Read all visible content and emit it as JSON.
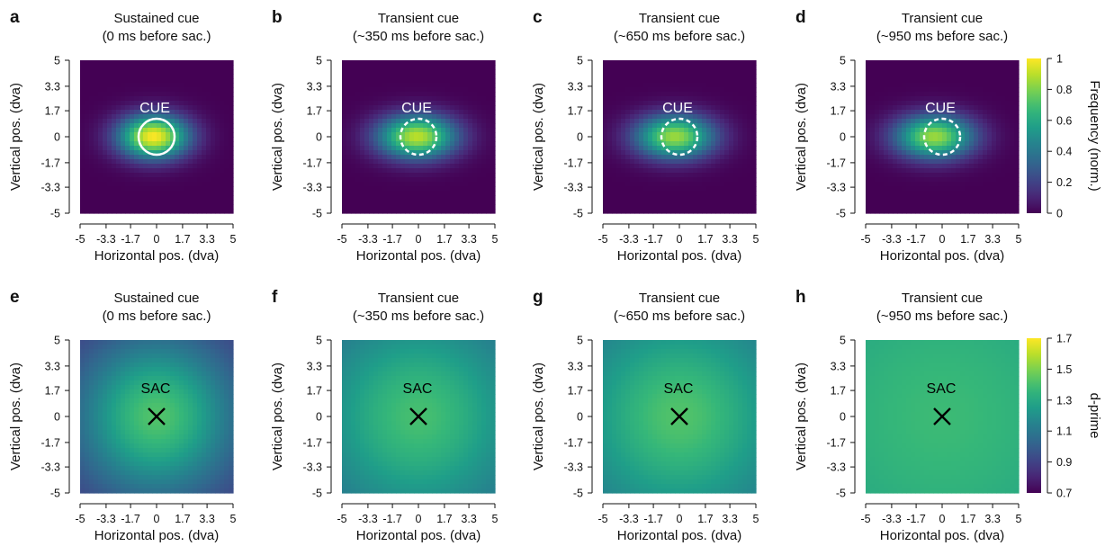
{
  "chart_data": [
    {
      "type": "heatmap",
      "panel_label": "a",
      "title_line1": "Sustained cue",
      "title_line2": "(0 ms before sac.)",
      "xlabel": "Horizontal pos. (dva)",
      "ylabel": "Vertical pos. (dva)",
      "xlim": [
        -5,
        5
      ],
      "ylim": [
        -5,
        5
      ],
      "xticks": [
        "-5",
        "-3.3",
        "-1.7",
        "0",
        "1.7",
        "3.3",
        "5"
      ],
      "yticks": [
        "5",
        "3.3",
        "1.7",
        "0",
        "-1.7",
        "-3.3",
        "-5"
      ],
      "overlay_label": "CUE",
      "overlay_marker": "solid-circle",
      "center": [
        -0.2,
        0.0
      ],
      "peak": 1.0,
      "spread": [
        1.6,
        1.0
      ],
      "background": 0.0
    },
    {
      "type": "heatmap",
      "panel_label": "b",
      "title_line1": "Transient cue",
      "title_line2": "(~350 ms before sac.)",
      "xlabel": "Horizontal pos. (dva)",
      "ylabel": "Vertical pos. (dva)",
      "xlim": [
        -5,
        5
      ],
      "ylim": [
        -5,
        5
      ],
      "xticks": [
        "-5",
        "-3.3",
        "-1.7",
        "0",
        "1.7",
        "3.3",
        "5"
      ],
      "yticks": [
        "5",
        "3.3",
        "1.7",
        "0",
        "-1.7",
        "-3.3",
        "-5"
      ],
      "overlay_label": "CUE",
      "overlay_marker": "dashed-circle",
      "center": [
        -0.1,
        0.0
      ],
      "peak": 0.9,
      "spread": [
        1.8,
        1.0
      ],
      "background": 0.0
    },
    {
      "type": "heatmap",
      "panel_label": "c",
      "title_line1": "Transient cue",
      "title_line2": "(~650 ms before sac.)",
      "xlabel": "Horizontal pos. (dva)",
      "ylabel": "Vertical pos. (dva)",
      "xlim": [
        -5,
        5
      ],
      "ylim": [
        -5,
        5
      ],
      "xticks": [
        "-5",
        "-3.3",
        "-1.7",
        "0",
        "1.7",
        "3.3",
        "5"
      ],
      "yticks": [
        "5",
        "3.3",
        "1.7",
        "0",
        "-1.7",
        "-3.3",
        "-5"
      ],
      "overlay_label": "CUE",
      "overlay_marker": "dashed-circle",
      "center": [
        -0.3,
        0.0
      ],
      "peak": 0.85,
      "spread": [
        1.8,
        1.0
      ],
      "background": 0.0
    },
    {
      "type": "heatmap",
      "panel_label": "d",
      "title_line1": "Transient cue",
      "title_line2": "(~950 ms before sac.)",
      "xlabel": "Horizontal pos. (dva)",
      "ylabel": "Vertical pos. (dva)",
      "xlim": [
        -5,
        5
      ],
      "ylim": [
        -5,
        5
      ],
      "xticks": [
        "-5",
        "-3.3",
        "-1.7",
        "0",
        "1.7",
        "3.3",
        "5"
      ],
      "yticks": [
        "5",
        "3.3",
        "1.7",
        "0",
        "-1.7",
        "-3.3",
        "-5"
      ],
      "overlay_label": "CUE",
      "overlay_marker": "dashed-circle",
      "center": [
        -0.5,
        0.0
      ],
      "peak": 0.85,
      "spread": [
        1.8,
        1.0
      ],
      "background": 0.0
    },
    {
      "type": "heatmap",
      "panel_label": "e",
      "title_line1": "Sustained cue",
      "title_line2": "(0 ms before sac.)",
      "xlabel": "Horizontal pos. (dva)",
      "ylabel": "Vertical pos. (dva)",
      "xlim": [
        -5,
        5
      ],
      "ylim": [
        -5,
        5
      ],
      "xticks": [
        "-5",
        "-3.3",
        "-1.7",
        "0",
        "1.7",
        "3.3",
        "5"
      ],
      "yticks": [
        "5",
        "3.3",
        "1.7",
        "0",
        "-1.7",
        "-3.3",
        "-5"
      ],
      "overlay_label": "SAC",
      "overlay_marker": "cross",
      "center": [
        0.0,
        0.0
      ],
      "peak": 1.42,
      "spread": [
        3.6,
        3.6
      ],
      "background": 0.85
    },
    {
      "type": "heatmap",
      "panel_label": "f",
      "title_line1": "Transient cue",
      "title_line2": "(~350 ms before sac.)",
      "xlabel": "Horizontal pos. (dva)",
      "ylabel": "Vertical pos. (dva)",
      "xlim": [
        -5,
        5
      ],
      "ylim": [
        -5,
        5
      ],
      "xticks": [
        "-5",
        "-3.3",
        "-1.7",
        "0",
        "1.7",
        "3.3",
        "5"
      ],
      "yticks": [
        "5",
        "3.3",
        "1.7",
        "0",
        "-1.7",
        "-3.3",
        "-5"
      ],
      "overlay_label": "SAC",
      "overlay_marker": "cross",
      "center": [
        0.0,
        0.0
      ],
      "peak": 1.4,
      "spread": [
        4.2,
        4.2
      ],
      "background": 1.05
    },
    {
      "type": "heatmap",
      "panel_label": "g",
      "title_line1": "Transient cue",
      "title_line2": "(~650 ms before sac.)",
      "xlabel": "Horizontal pos. (dva)",
      "ylabel": "Vertical pos. (dva)",
      "xlim": [
        -5,
        5
      ],
      "ylim": [
        -5,
        5
      ],
      "xticks": [
        "-5",
        "-3.3",
        "-1.7",
        "0",
        "1.7",
        "3.3",
        "5"
      ],
      "yticks": [
        "5",
        "3.3",
        "1.7",
        "0",
        "-1.7",
        "-3.3",
        "-5"
      ],
      "overlay_label": "SAC",
      "overlay_marker": "cross",
      "center": [
        0.0,
        0.0
      ],
      "peak": 1.42,
      "spread": [
        4.2,
        4.2
      ],
      "background": 1.08
    },
    {
      "type": "heatmap",
      "panel_label": "h",
      "title_line1": "Transient cue",
      "title_line2": "(~950 ms before sac.)",
      "xlabel": "Horizontal pos. (dva)",
      "ylabel": "Vertical pos. (dva)",
      "xlim": [
        -5,
        5
      ],
      "ylim": [
        -5,
        5
      ],
      "xticks": [
        "-5",
        "-3.3",
        "-1.7",
        "0",
        "1.7",
        "3.3",
        "5"
      ],
      "yticks": [
        "5",
        "3.3",
        "1.7",
        "0",
        "-1.7",
        "-3.3",
        "-5"
      ],
      "overlay_label": "SAC",
      "overlay_marker": "cross",
      "center": [
        0.0,
        0.0
      ],
      "peak": 1.38,
      "spread": [
        6.0,
        6.0
      ],
      "background": 1.25
    }
  ],
  "colorbars": [
    {
      "label": "Frequency (norm.)",
      "min": 0,
      "max": 1,
      "ticks": [
        "1",
        "0.8",
        "0.6",
        "0.4",
        "0.2",
        "0"
      ],
      "colormap": "viridis"
    },
    {
      "label": "d-prime",
      "min": 0.7,
      "max": 1.7,
      "ticks": [
        "1.7",
        "1.5",
        "1.3",
        "1.1",
        "0.9",
        "0.7"
      ],
      "colormap": "viridis"
    }
  ],
  "colors": {
    "overlay_light": "#ffffff",
    "overlay_dark": "#000000",
    "axis": "#111111"
  }
}
